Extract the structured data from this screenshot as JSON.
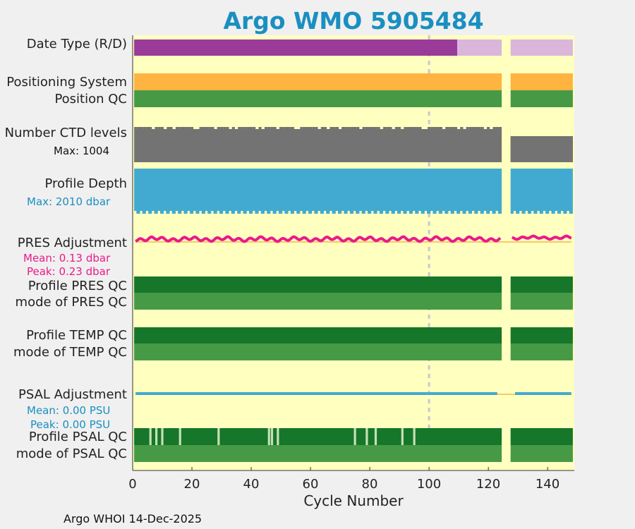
{
  "chart_data": {
    "type": "timeline",
    "title": "Argo WMO 5905484",
    "xlabel": "Cycle Number",
    "xlim": [
      0,
      149
    ],
    "xticks": [
      0,
      20,
      40,
      60,
      80,
      100,
      120,
      140
    ],
    "gap_cycles": [
      125,
      126,
      127
    ],
    "reference_cycle": 100,
    "rows": [
      {
        "id": "date_type",
        "label": "Date Type (R/D)"
      },
      {
        "id": "positioning",
        "label": "Positioning System"
      },
      {
        "id": "position_qc",
        "label": "Position QC"
      },
      {
        "id": "ctd_levels",
        "label": "Number CTD levels",
        "note": "Max: 1004"
      },
      {
        "id": "profile_depth",
        "label": "Profile Depth",
        "note": "Max: 2010 dbar"
      },
      {
        "id": "pres_adj",
        "label": "PRES Adjustment",
        "mean": "Mean: 0.13 dbar",
        "peak": "Peak: 0.23 dbar"
      },
      {
        "id": "prof_pres_qc",
        "label": "Profile PRES QC"
      },
      {
        "id": "mode_pres_qc",
        "label": "mode of PRES QC"
      },
      {
        "id": "prof_temp_qc",
        "label": "Profile TEMP QC"
      },
      {
        "id": "mode_temp_qc",
        "label": "mode of TEMP QC"
      },
      {
        "id": "psal_adj",
        "label": "PSAL Adjustment",
        "mean": "Mean: 0.00 PSU",
        "peak": "Peak: 0.00 PSU"
      },
      {
        "id": "prof_psal_qc",
        "label": "Profile PSAL QC"
      },
      {
        "id": "mode_psal_qc",
        "label": "mode of PSAL QC"
      }
    ],
    "date_type_delayed_until_cycle": 109,
    "psal_profile_qc_light_cycles": [
      6,
      8,
      10,
      16,
      29,
      46,
      47,
      49,
      75,
      79,
      82,
      91,
      95
    ],
    "colors": {
      "background": "#ffffc0",
      "date_type_delayed": "#9a3b9a",
      "date_type_realtime": "#dbb6db",
      "positioning": "#ffb340",
      "qc_good_light": "#469a46",
      "qc_good_dark": "#16762a",
      "qc_flag": "#c6e0b5",
      "ctd": "#737373",
      "depth": "#42aad0",
      "pres_adj": "#ea1a8a",
      "psal_adj": "#42aad0",
      "zero_line": "#f2b84b"
    }
  },
  "footer": "Argo WHOI 14-Dec-2025"
}
